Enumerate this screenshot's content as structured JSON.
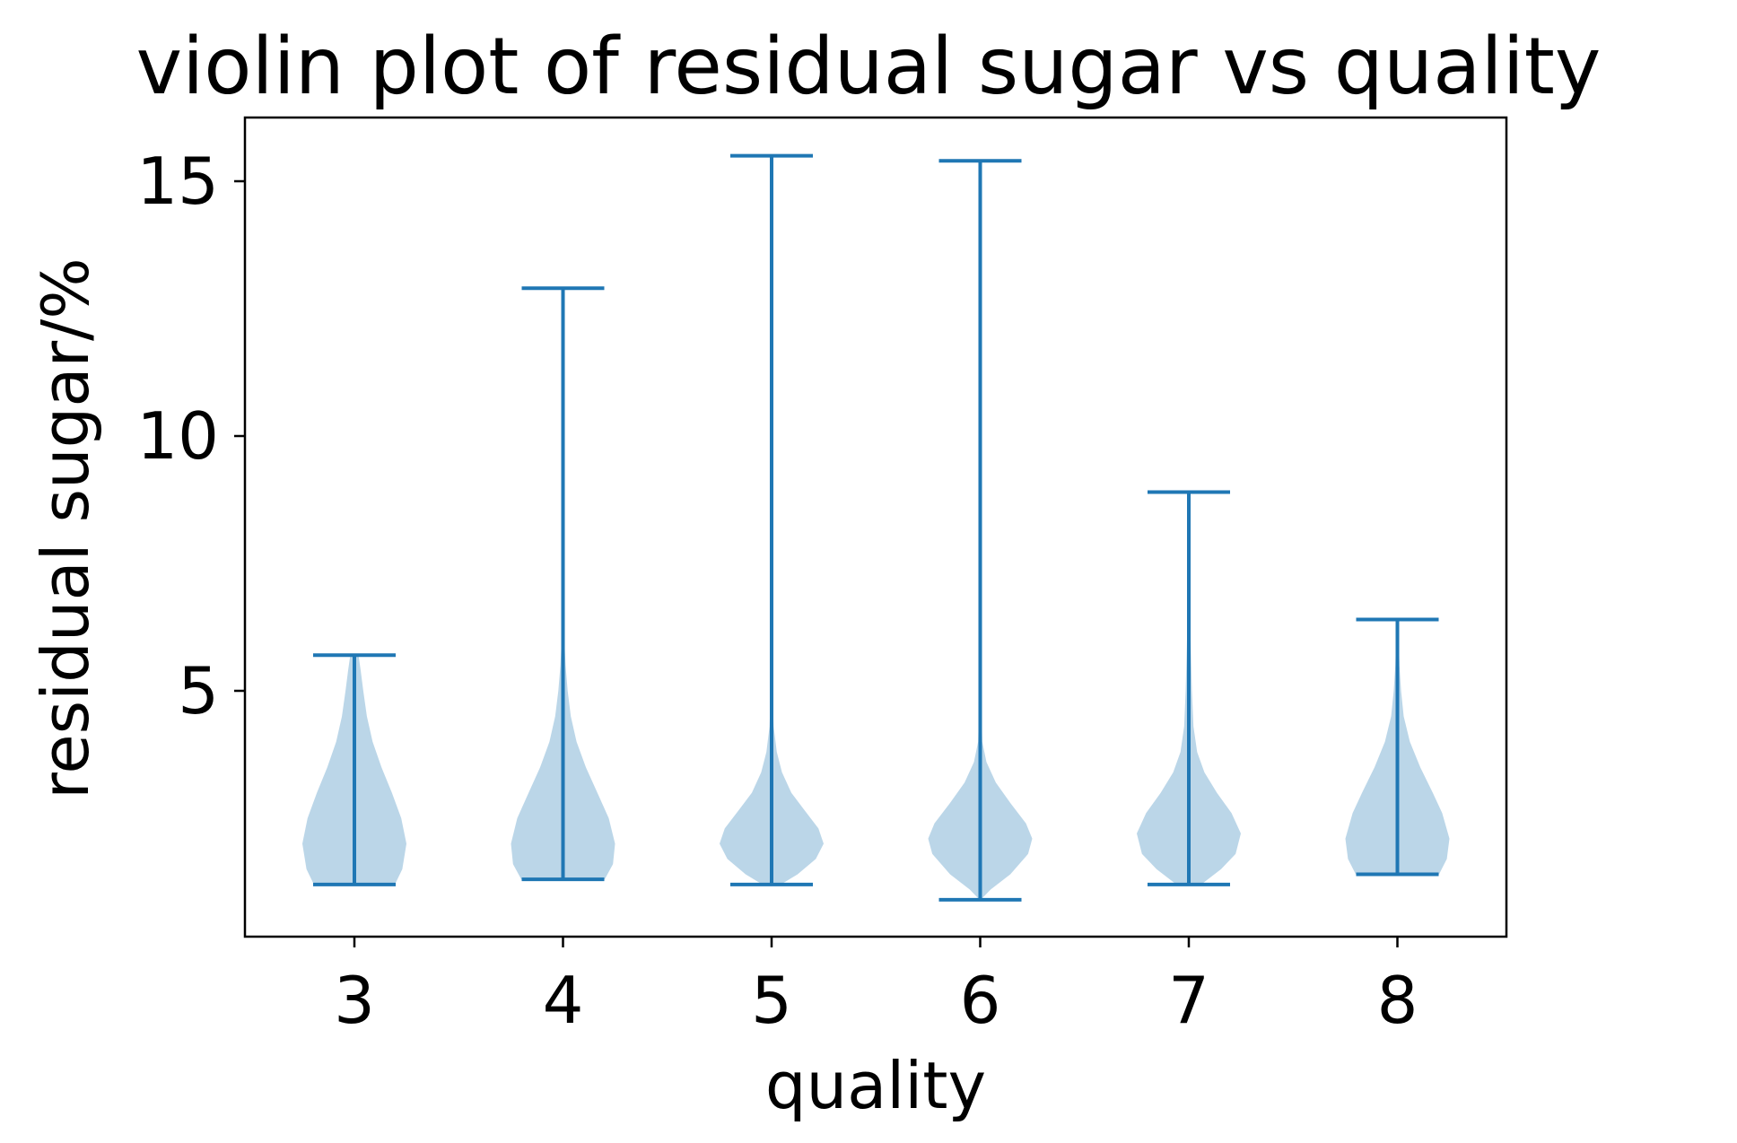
{
  "chart_data": {
    "type": "violin",
    "title": "violin plot of residual sugar vs quality",
    "xlabel": "quality",
    "ylabel": "residual sugar/%",
    "categories": [
      "3",
      "4",
      "5",
      "6",
      "7",
      "8"
    ],
    "x_ticks": [
      "3",
      "4",
      "5",
      "6",
      "7",
      "8"
    ],
    "y_ticks": [
      "5",
      "10",
      "15"
    ],
    "y_tick_values": [
      5,
      10,
      15
    ],
    "ylim": [
      0.2,
      16.3
    ],
    "grid": false,
    "colors": {
      "body": "#1f77b4",
      "lines": "#1f77b4"
    },
    "series": [
      {
        "category": "3",
        "min": 1.2,
        "max": 5.7,
        "density": [
          [
            1.2,
            0.78
          ],
          [
            1.5,
            0.92
          ],
          [
            2.0,
            1.0
          ],
          [
            2.5,
            0.9
          ],
          [
            3.0,
            0.72
          ],
          [
            3.5,
            0.52
          ],
          [
            4.0,
            0.35
          ],
          [
            4.5,
            0.24
          ],
          [
            5.0,
            0.17
          ],
          [
            5.4,
            0.12
          ],
          [
            5.7,
            0.08
          ]
        ]
      },
      {
        "category": "4",
        "min": 1.3,
        "max": 12.9,
        "density": [
          [
            1.3,
            0.8
          ],
          [
            1.6,
            0.96
          ],
          [
            2.0,
            1.0
          ],
          [
            2.5,
            0.88
          ],
          [
            3.0,
            0.66
          ],
          [
            3.5,
            0.44
          ],
          [
            4.0,
            0.26
          ],
          [
            4.5,
            0.15
          ],
          [
            5.0,
            0.09
          ],
          [
            5.5,
            0.05
          ],
          [
            6.0,
            0.025
          ],
          [
            7.0,
            0.01
          ],
          [
            9.0,
            0.005
          ],
          [
            12.9,
            0.005
          ]
        ]
      },
      {
        "category": "5",
        "min": 1.2,
        "max": 15.5,
        "density": [
          [
            1.2,
            0.18
          ],
          [
            1.4,
            0.5
          ],
          [
            1.7,
            0.85
          ],
          [
            2.0,
            1.0
          ],
          [
            2.3,
            0.9
          ],
          [
            2.7,
            0.6
          ],
          [
            3.0,
            0.38
          ],
          [
            3.4,
            0.2
          ],
          [
            3.8,
            0.1
          ],
          [
            4.3,
            0.04
          ],
          [
            5.0,
            0.015
          ],
          [
            8.0,
            0.005
          ],
          [
            15.5,
            0.005
          ]
        ]
      },
      {
        "category": "6",
        "min": 0.9,
        "max": 15.4,
        "density": [
          [
            0.9,
            0.01
          ],
          [
            1.1,
            0.2
          ],
          [
            1.4,
            0.58
          ],
          [
            1.8,
            0.92
          ],
          [
            2.1,
            1.0
          ],
          [
            2.4,
            0.88
          ],
          [
            2.8,
            0.58
          ],
          [
            3.2,
            0.3
          ],
          [
            3.6,
            0.12
          ],
          [
            4.0,
            0.04
          ],
          [
            5.0,
            0.012
          ],
          [
            8.0,
            0.005
          ],
          [
            15.4,
            0.005
          ]
        ]
      },
      {
        "category": "7",
        "min": 1.2,
        "max": 8.9,
        "density": [
          [
            1.2,
            0.24
          ],
          [
            1.5,
            0.62
          ],
          [
            1.8,
            0.9
          ],
          [
            2.2,
            1.0
          ],
          [
            2.6,
            0.82
          ],
          [
            3.0,
            0.54
          ],
          [
            3.4,
            0.3
          ],
          [
            3.8,
            0.16
          ],
          [
            4.3,
            0.09
          ],
          [
            5.0,
            0.06
          ],
          [
            6.0,
            0.035
          ],
          [
            6.6,
            0.02
          ],
          [
            7.5,
            0.008
          ],
          [
            8.9,
            0.005
          ]
        ]
      },
      {
        "category": "8",
        "min": 1.4,
        "max": 6.4,
        "density": [
          [
            1.4,
            0.8
          ],
          [
            1.7,
            0.95
          ],
          [
            2.1,
            1.0
          ],
          [
            2.6,
            0.86
          ],
          [
            3.0,
            0.68
          ],
          [
            3.5,
            0.44
          ],
          [
            4.0,
            0.24
          ],
          [
            4.5,
            0.12
          ],
          [
            5.0,
            0.07
          ],
          [
            5.5,
            0.04
          ],
          [
            6.0,
            0.025
          ],
          [
            6.4,
            0.015
          ]
        ]
      }
    ]
  }
}
